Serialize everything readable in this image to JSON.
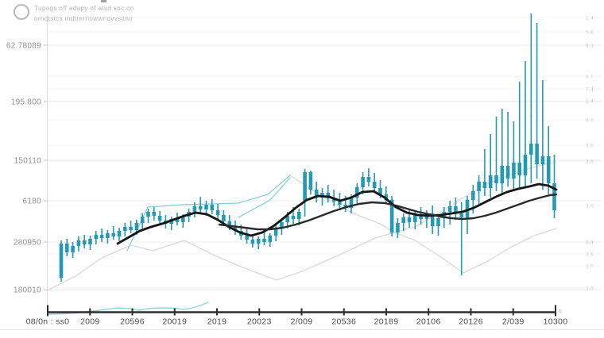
{
  "legend": {
    "icon": "circle-outline",
    "line1": "Tupogs off edapy of atsd soc.on",
    "line2": "orndtstcs mdtrerriowwnovvsitno"
  },
  "colors": {
    "candle": "#2499b3",
    "ma_fast": "#161616",
    "ma_slow": "#2b2b2b",
    "band": "#d9d9d9",
    "trend": "#7fcfd8",
    "volume": "#8fd6dc",
    "grid_major": "#ebebeb",
    "grid_minor": "#f5f5f5",
    "axis": "#2e2e2e",
    "y_label": "#8f8f8f",
    "x_label": "#4a4a4a",
    "right_label": "#c9c9c9",
    "divider": "#e8e8e8",
    "plot_border": "#dcdcdc",
    "end_label": "#bbbbbb"
  },
  "chart_data": {
    "type": "candlestick",
    "title": "",
    "legend_position": "top-left",
    "grid": true,
    "ylim": [
      0,
      380
    ],
    "plot": {
      "x0": 60,
      "x1": 699,
      "y_bottom": 393,
      "y_top": 35,
      "candle_x0": 77,
      "candle_dx": 7.3,
      "candle_w": 4.6
    },
    "x_axis": {
      "tick_labels": [
        "08/0n : ss0",
        "2009",
        "20596",
        "20019",
        "2019",
        "20023",
        "2/009",
        "20536",
        "20189",
        "20106",
        "20126",
        "2/039",
        "10300"
      ],
      "end_label": "6"
    },
    "y_axis_left": {
      "tick_labels": [
        {
          "text": "62.78089",
          "y": 57
        },
        {
          "text": "195.800",
          "y": 128
        },
        {
          "text": "150110",
          "y": 202
        },
        {
          "text": "6180",
          "y": 253
        },
        {
          "text": "280950",
          "y": 305
        },
        {
          "text": "180010",
          "y": 365
        }
      ]
    },
    "y_axis_right": {
      "tick_labels": [
        {
          "text": "1.4",
          "y": 22
        },
        {
          "text": "5.8",
          "y": 40
        },
        {
          "text": "8.3",
          "y": 57
        },
        {
          "text": "8.1",
          "y": 96
        },
        {
          "text": "7.4",
          "y": 112
        },
        {
          "text": "1.4",
          "y": 127
        },
        {
          "text": "8.5",
          "y": 151
        },
        {
          "text": "3.5",
          "y": 183
        },
        {
          "text": "3.6",
          "y": 203
        },
        {
          "text": "3.0",
          "y": 259
        },
        {
          "text": "6.4",
          "y": 305
        },
        {
          "text": "3.6",
          "y": 320
        },
        {
          "text": "2.0",
          "y": 335
        },
        {
          "text": "3.0",
          "y": 363
        }
      ]
    },
    "candles": [
      [
        43,
        90,
        38,
        86
      ],
      [
        86,
        92,
        70,
        75
      ],
      [
        75,
        88,
        68,
        83
      ],
      [
        83,
        95,
        76,
        90
      ],
      [
        90,
        97,
        80,
        85
      ],
      [
        85,
        96,
        78,
        92
      ],
      [
        92,
        102,
        85,
        97
      ],
      [
        97,
        105,
        88,
        93
      ],
      [
        93,
        103,
        86,
        99
      ],
      [
        99,
        108,
        91,
        95
      ],
      [
        95,
        106,
        89,
        102
      ],
      [
        102,
        112,
        95,
        107
      ],
      [
        107,
        115,
        99,
        103
      ],
      [
        103,
        116,
        97,
        112
      ],
      [
        112,
        124,
        105,
        120
      ],
      [
        120,
        130,
        112,
        126
      ],
      [
        126,
        132,
        115,
        121
      ],
      [
        121,
        127,
        109,
        115
      ],
      [
        115,
        122,
        105,
        111
      ],
      [
        111,
        120,
        103,
        117
      ],
      [
        117,
        125,
        109,
        113
      ],
      [
        113,
        123,
        106,
        120
      ],
      [
        120,
        130,
        113,
        126
      ],
      [
        126,
        138,
        119,
        133
      ],
      [
        133,
        145,
        125,
        129
      ],
      [
        129,
        140,
        121,
        135
      ],
      [
        135,
        142,
        123,
        128
      ],
      [
        128,
        136,
        117,
        122
      ],
      [
        122,
        128,
        109,
        114
      ],
      [
        114,
        122,
        103,
        108
      ],
      [
        108,
        115,
        97,
        102
      ],
      [
        102,
        110,
        91,
        96
      ],
      [
        96,
        104,
        86,
        91
      ],
      [
        91,
        98,
        81,
        86
      ],
      [
        86,
        95,
        79,
        92
      ],
      [
        92,
        100,
        84,
        88
      ],
      [
        88,
        99,
        82,
        96
      ],
      [
        96,
        110,
        89,
        105
      ],
      [
        105,
        118,
        97,
        113
      ],
      [
        113,
        126,
        105,
        121
      ],
      [
        121,
        132,
        111,
        117
      ],
      [
        117,
        130,
        109,
        126
      ],
      [
        140,
        180,
        120,
        176
      ],
      [
        176,
        178,
        148,
        154
      ],
      [
        154,
        164,
        138,
        144
      ],
      [
        144,
        156,
        134,
        150
      ],
      [
        150,
        160,
        138,
        143
      ],
      [
        143,
        154,
        133,
        139
      ],
      [
        139,
        150,
        130,
        135
      ],
      [
        135,
        146,
        126,
        131
      ],
      [
        131,
        148,
        124,
        144
      ],
      [
        144,
        162,
        136,
        157
      ],
      [
        157,
        176,
        148,
        170
      ],
      [
        170,
        181,
        158,
        164
      ],
      [
        164,
        175,
        150,
        156
      ],
      [
        156,
        166,
        143,
        148
      ],
      [
        148,
        158,
        136,
        141
      ],
      [
        141,
        146,
        95,
        100
      ],
      [
        100,
        118,
        93,
        112
      ],
      [
        112,
        124,
        102,
        119
      ],
      [
        119,
        128,
        106,
        113
      ],
      [
        113,
        126,
        104,
        122
      ],
      [
        122,
        132,
        110,
        117
      ],
      [
        117,
        128,
        106,
        124
      ],
      [
        124,
        134,
        98,
        108
      ],
      [
        108,
        122,
        96,
        118
      ],
      [
        118,
        132,
        106,
        126
      ],
      [
        126,
        140,
        110,
        133
      ],
      [
        133,
        144,
        116,
        124
      ],
      [
        124,
        138,
        46,
        119
      ],
      [
        119,
        146,
        98,
        141
      ],
      [
        141,
        160,
        124,
        152
      ],
      [
        152,
        172,
        136,
        164
      ],
      [
        164,
        205,
        146,
        156
      ],
      [
        156,
        224,
        144,
        172
      ],
      [
        172,
        246,
        152,
        162
      ],
      [
        162,
        256,
        148,
        184
      ],
      [
        184,
        252,
        158,
        168
      ],
      [
        168,
        240,
        152,
        188
      ],
      [
        188,
        290,
        156,
        172
      ],
      [
        172,
        316,
        158,
        198
      ],
      [
        198,
        376,
        162,
        212
      ],
      [
        212,
        364,
        168,
        186
      ],
      [
        186,
        292,
        154,
        196
      ],
      [
        196,
        234,
        148,
        162
      ],
      [
        162,
        198,
        118,
        128
      ]
    ],
    "series": [
      {
        "name": "lower-band",
        "color_key": "band",
        "width": 1.3,
        "points": [
          [
            60,
            27
          ],
          [
            95,
            45
          ],
          [
            130,
            69
          ],
          [
            165,
            84
          ],
          [
            192,
            77
          ],
          [
            232,
            90
          ],
          [
            268,
            72
          ],
          [
            305,
            56
          ],
          [
            348,
            40
          ],
          [
            380,
            51
          ],
          [
            412,
            65
          ],
          [
            445,
            80
          ],
          [
            472,
            93
          ],
          [
            497,
            100
          ],
          [
            522,
            90
          ],
          [
            552,
            71
          ],
          [
            583,
            49
          ],
          [
            614,
            64
          ],
          [
            644,
            82
          ],
          [
            672,
            96
          ],
          [
            700,
            105
          ]
        ]
      },
      {
        "name": "upper-band",
        "color_key": "band",
        "width": 1.3,
        "points": [
          [
            365,
            172
          ],
          [
            398,
            150
          ],
          [
            425,
            134
          ],
          [
            452,
            121
          ],
          [
            478,
            111
          ],
          [
            497,
            100
          ],
          [
            522,
            107
          ],
          [
            550,
            123
          ],
          [
            580,
            142
          ],
          [
            610,
            160
          ],
          [
            640,
            172
          ],
          [
            670,
            182
          ],
          [
            700,
            189
          ]
        ]
      },
      {
        "name": "trend-line-1",
        "color_key": "trend",
        "width": 1.2,
        "points": [
          [
            160,
            77
          ],
          [
            186,
            132
          ],
          [
            230,
            135
          ],
          [
            300,
            137
          ],
          [
            337,
            148
          ],
          [
            365,
            172
          ]
        ]
      },
      {
        "name": "trend-line-2",
        "color_key": "trend",
        "width": 1.2,
        "points": [
          [
            300,
            119
          ],
          [
            340,
            141
          ],
          [
            365,
            169
          ]
        ]
      },
      {
        "name": "volume-line",
        "color_key": "volume",
        "width": 1.4,
        "points": [
          [
            60,
            -3
          ],
          [
            80,
            -2.5
          ],
          [
            100,
            -1
          ],
          [
            125,
            2
          ],
          [
            148,
            5
          ],
          [
            163,
            4
          ],
          [
            175,
            2
          ],
          [
            190,
            4.5
          ],
          [
            205,
            5
          ],
          [
            220,
            4.5
          ],
          [
            232,
            3
          ],
          [
            242,
            5
          ],
          [
            252,
            8
          ],
          [
            262,
            12
          ]
        ]
      },
      {
        "name": "ma-fast",
        "color_key": "ma_fast",
        "width": 2.8,
        "points": [
          [
            148,
            86
          ],
          [
            162,
            94
          ],
          [
            176,
            102
          ],
          [
            190,
            107
          ],
          [
            204,
            111
          ],
          [
            218,
            116
          ],
          [
            232,
            121
          ],
          [
            246,
            125
          ],
          [
            260,
            123
          ],
          [
            274,
            116
          ],
          [
            288,
            107
          ],
          [
            302,
            100
          ],
          [
            316,
            96
          ],
          [
            330,
            100
          ],
          [
            344,
            108
          ],
          [
            358,
            119
          ],
          [
            372,
            131
          ],
          [
            386,
            141
          ],
          [
            400,
            146
          ],
          [
            414,
            145
          ],
          [
            428,
            140
          ],
          [
            442,
            144
          ],
          [
            456,
            151
          ],
          [
            470,
            152
          ],
          [
            484,
            144
          ],
          [
            498,
            132
          ],
          [
            512,
            125
          ],
          [
            526,
            122
          ],
          [
            540,
            121
          ],
          [
            554,
            122
          ],
          [
            568,
            124
          ],
          [
            582,
            126
          ],
          [
            596,
            131
          ],
          [
            610,
            138
          ],
          [
            624,
            145
          ],
          [
            638,
            151
          ],
          [
            652,
            155
          ],
          [
            666,
            158
          ],
          [
            678,
            161
          ],
          [
            690,
            159
          ],
          [
            700,
            154
          ]
        ]
      },
      {
        "name": "ma-slow",
        "color_key": "ma_slow",
        "width": 2.4,
        "points": [
          [
            276,
            110
          ],
          [
            292,
            108
          ],
          [
            308,
            106
          ],
          [
            324,
            104
          ],
          [
            340,
            104
          ],
          [
            356,
            106
          ],
          [
            372,
            110
          ],
          [
            388,
            115
          ],
          [
            404,
            121
          ],
          [
            420,
            127
          ],
          [
            436,
            132
          ],
          [
            452,
            136
          ],
          [
            468,
            138
          ],
          [
            484,
            137
          ],
          [
            498,
            134
          ],
          [
            512,
            130
          ],
          [
            526,
            126
          ],
          [
            540,
            123
          ],
          [
            554,
            120
          ],
          [
            568,
            118
          ],
          [
            582,
            117
          ],
          [
            596,
            118
          ],
          [
            610,
            121
          ],
          [
            624,
            125
          ],
          [
            638,
            130
          ],
          [
            652,
            135
          ],
          [
            666,
            140
          ],
          [
            680,
            144
          ],
          [
            692,
            147
          ],
          [
            700,
            148
          ]
        ]
      }
    ]
  }
}
